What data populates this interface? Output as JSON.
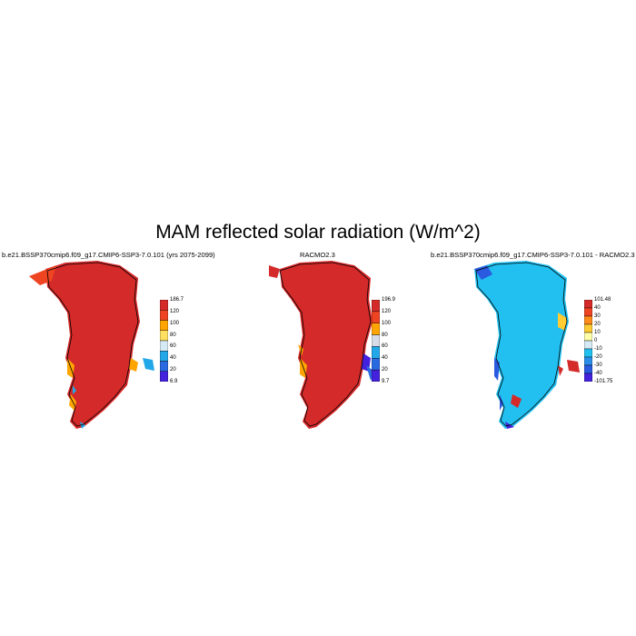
{
  "figure": {
    "title": "MAM reflected solar radiation (W/m^2)"
  },
  "panels": [
    {
      "title": "b.e21.BSSP370cmip6.f09_g17.CMIP6-SSP3-7.0.101 (yrs 2075-2099)",
      "colorbar": {
        "labels": [
          "186.7",
          "120",
          "100",
          "80",
          "60",
          "40",
          "20",
          "6.9"
        ],
        "colors": [
          "#d42a2a",
          "#ee4422",
          "#ffa500",
          "#ffe060",
          "#d6eaf6",
          "#22a8e8",
          "#2a6ae0",
          "#4422dd"
        ]
      }
    },
    {
      "title": "RACMO2.3",
      "colorbar": {
        "labels": [
          "196.9",
          "120",
          "100",
          "80",
          "60",
          "40",
          "20",
          "9.7"
        ],
        "colors": [
          "#d42a2a",
          "#ee4422",
          "#ffa500",
          "#d6dde6",
          "#22a8e8",
          "#2a6ae0",
          "#4422dd"
        ]
      }
    },
    {
      "title": "b.e21.BSSP370cmip6.f09_g17.CMIP6-SSP3-7.0.101 - RACMO2.3",
      "colorbar": {
        "labels": [
          "101.48",
          "40",
          "30",
          "20",
          "10",
          "0",
          "-10",
          "-20",
          "-30",
          "-40",
          "-101.75"
        ],
        "colors": [
          "#d42a2a",
          "#ee4422",
          "#ff8c1a",
          "#ffcc33",
          "#ffffaa",
          "#d6eaf6",
          "#22c0f0",
          "#2a8ee8",
          "#2a5ae0",
          "#4422dd"
        ]
      }
    }
  ]
}
